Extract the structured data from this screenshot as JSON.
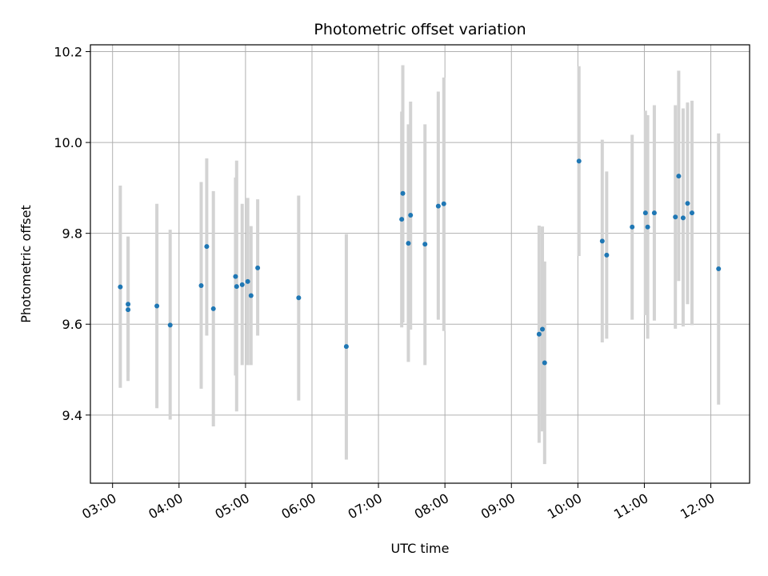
{
  "chart_data": {
    "type": "scatter",
    "title": "Photometric offset variation",
    "xlabel": "UTC time",
    "ylabel": "Photometric offset",
    "x_axis_kind": "time",
    "xlim": [
      "02:40",
      "12:35"
    ],
    "ylim": [
      9.25,
      10.215
    ],
    "x_ticks": [
      "03:00",
      "04:00",
      "05:00",
      "06:00",
      "07:00",
      "08:00",
      "09:00",
      "10:00",
      "11:00",
      "12:00"
    ],
    "y_ticks": [
      9.4,
      9.6,
      9.8,
      10.0,
      10.2
    ],
    "y_tick_labels": [
      "9.4",
      "9.6",
      "9.8",
      "10.0",
      "10.2"
    ],
    "grid": true,
    "marker_color": "#1f77b4",
    "errorbar_color": "#d3d3d3",
    "series": [
      {
        "points": [
          {
            "x": "03:07",
            "y": 9.682,
            "lo": 9.46,
            "hi": 9.905
          },
          {
            "x": "03:14",
            "y": 9.644,
            "lo": 9.495,
            "hi": 9.793
          },
          {
            "x": "03:14",
            "y": 9.632,
            "lo": 9.475,
            "hi": 9.79
          },
          {
            "x": "03:40",
            "y": 9.64,
            "lo": 9.415,
            "hi": 9.865
          },
          {
            "x": "03:52",
            "y": 9.598,
            "lo": 9.39,
            "hi": 9.808
          },
          {
            "x": "04:20",
            "y": 9.685,
            "lo": 9.458,
            "hi": 9.913
          },
          {
            "x": "04:25",
            "y": 9.771,
            "lo": 9.575,
            "hi": 9.965
          },
          {
            "x": "04:31",
            "y": 9.634,
            "lo": 9.375,
            "hi": 9.893
          },
          {
            "x": "04:51",
            "y": 9.705,
            "lo": 9.487,
            "hi": 9.923
          },
          {
            "x": "04:52",
            "y": 9.683,
            "lo": 9.408,
            "hi": 9.96
          },
          {
            "x": "04:57",
            "y": 9.687,
            "lo": 9.51,
            "hi": 9.865
          },
          {
            "x": "05:02",
            "y": 9.694,
            "lo": 9.51,
            "hi": 9.878
          },
          {
            "x": "05:05",
            "y": 9.663,
            "lo": 9.51,
            "hi": 9.816
          },
          {
            "x": "05:11",
            "y": 9.724,
            "lo": 9.575,
            "hi": 9.875
          },
          {
            "x": "05:48",
            "y": 9.658,
            "lo": 9.432,
            "hi": 9.883
          },
          {
            "x": "06:31",
            "y": 9.551,
            "lo": 9.302,
            "hi": 9.798
          },
          {
            "x": "07:21",
            "y": 9.831,
            "lo": 9.593,
            "hi": 10.068
          },
          {
            "x": "07:22",
            "y": 9.888,
            "lo": 9.604,
            "hi": 10.17
          },
          {
            "x": "07:27",
            "y": 9.778,
            "lo": 9.517,
            "hi": 10.04
          },
          {
            "x": "07:29",
            "y": 9.84,
            "lo": 9.588,
            "hi": 10.09
          },
          {
            "x": "07:42",
            "y": 9.776,
            "lo": 9.51,
            "hi": 10.04
          },
          {
            "x": "07:54",
            "y": 9.86,
            "lo": 9.61,
            "hi": 10.112
          },
          {
            "x": "07:59",
            "y": 9.865,
            "lo": 9.585,
            "hi": 10.143
          },
          {
            "x": "09:25",
            "y": 9.578,
            "lo": 9.339,
            "hi": 9.817
          },
          {
            "x": "09:28",
            "y": 9.589,
            "lo": 9.364,
            "hi": 9.815
          },
          {
            "x": "09:30",
            "y": 9.515,
            "lo": 9.292,
            "hi": 9.738
          },
          {
            "x": "10:01",
            "y": 9.959,
            "lo": 9.75,
            "hi": 10.168
          },
          {
            "x": "10:22",
            "y": 9.783,
            "lo": 9.56,
            "hi": 10.006
          },
          {
            "x": "10:26",
            "y": 9.752,
            "lo": 9.568,
            "hi": 9.936
          },
          {
            "x": "10:49",
            "y": 9.814,
            "lo": 9.61,
            "hi": 10.017
          },
          {
            "x": "11:01",
            "y": 9.845,
            "lo": 9.62,
            "hi": 10.07
          },
          {
            "x": "11:03",
            "y": 9.814,
            "lo": 9.568,
            "hi": 10.06
          },
          {
            "x": "11:09",
            "y": 9.845,
            "lo": 9.608,
            "hi": 10.082
          },
          {
            "x": "11:28",
            "y": 9.836,
            "lo": 9.59,
            "hi": 10.082
          },
          {
            "x": "11:31",
            "y": 9.926,
            "lo": 9.695,
            "hi": 10.158
          },
          {
            "x": "11:35",
            "y": 9.834,
            "lo": 9.595,
            "hi": 10.075
          },
          {
            "x": "11:39",
            "y": 9.866,
            "lo": 9.644,
            "hi": 10.088
          },
          {
            "x": "11:43",
            "y": 9.845,
            "lo": 9.598,
            "hi": 10.092
          },
          {
            "x": "12:07",
            "y": 9.722,
            "lo": 9.423,
            "hi": 10.02
          }
        ]
      }
    ]
  }
}
